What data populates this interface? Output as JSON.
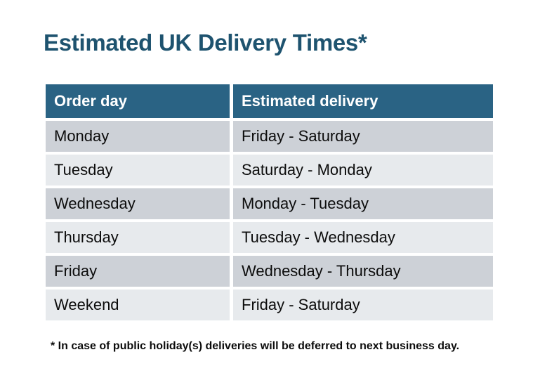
{
  "title": "Estimated UK Delivery Times*",
  "table": {
    "headers": [
      "Order day",
      "Estimated delivery"
    ],
    "rows": [
      [
        "Monday",
        "Friday - Saturday"
      ],
      [
        "Tuesday",
        "Saturday - Monday"
      ],
      [
        "Wednesday",
        "Monday - Tuesday"
      ],
      [
        "Thursday",
        "Tuesday - Wednesday"
      ],
      [
        "Friday",
        "Wednesday - Thursday"
      ],
      [
        "Weekend",
        "Friday - Saturday"
      ]
    ]
  },
  "footnote": "* In case of public holiday(s) deliveries will be deferred to next business day.",
  "colors": {
    "page_bg": "#FFFFFF",
    "header_bg": "#2A6384",
    "header_text": "#FFFFFF",
    "row_dark": "#CDD1D7",
    "row_light": "#E7EAED",
    "title_text": "#1E536F",
    "body_text": "#0C0C0C"
  }
}
